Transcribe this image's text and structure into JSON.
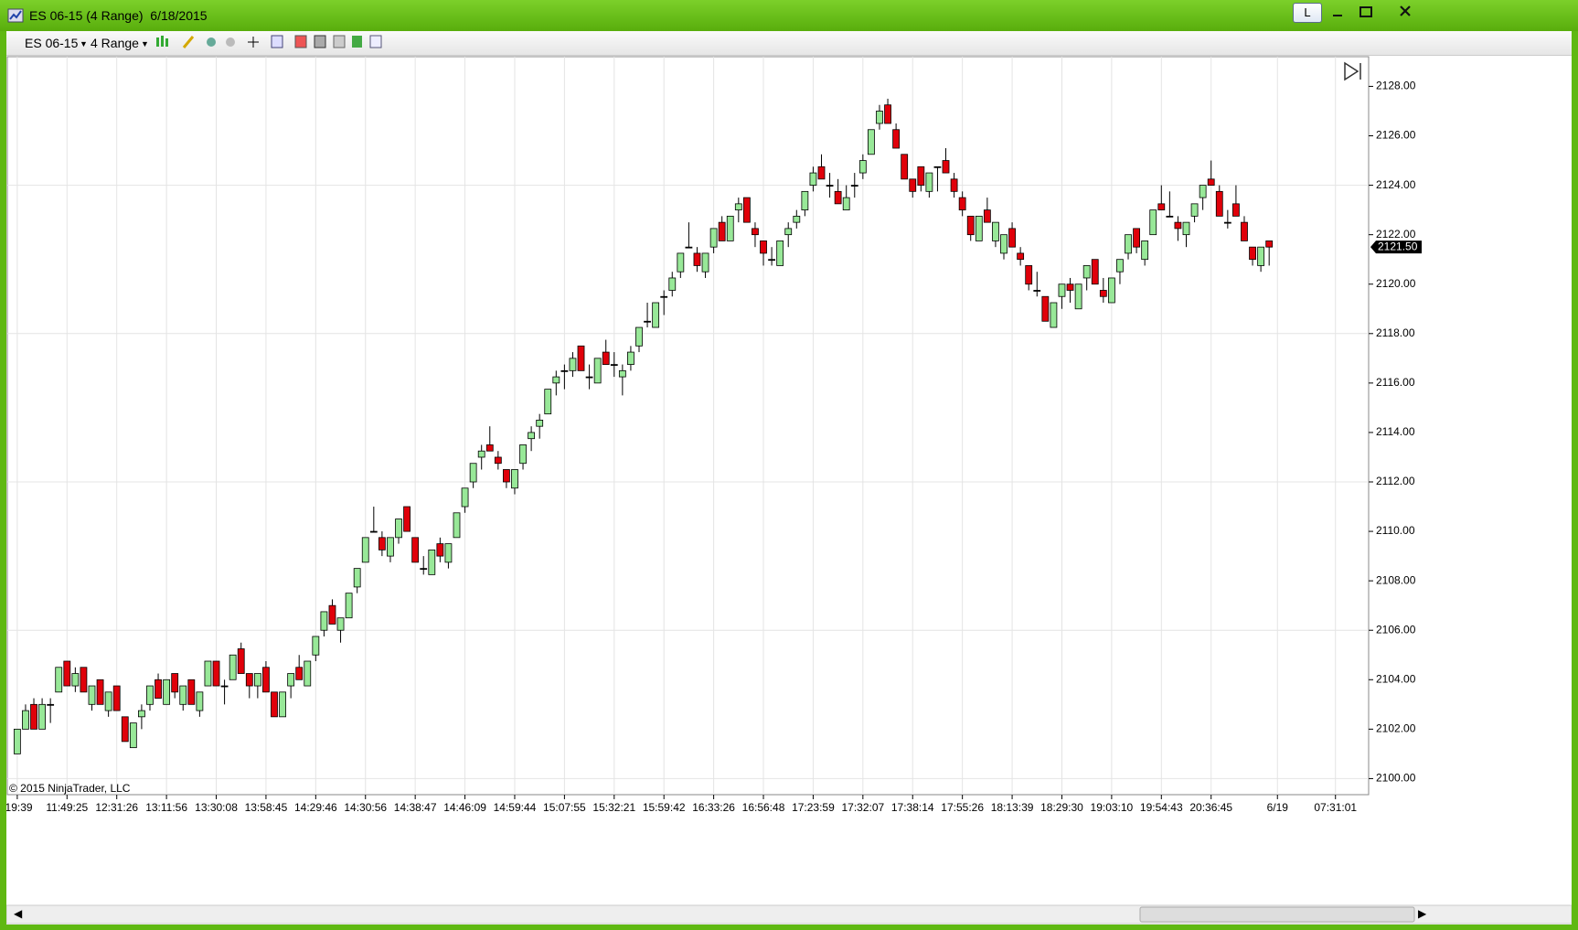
{
  "window": {
    "title": "ES 06-15 (4 Range)  6/18/2015",
    "button": "L"
  },
  "toolbar": {
    "instrument": "ES 06-15",
    "period": "4 Range"
  },
  "chart_data": {
    "type": "candlestick",
    "copyright": "© 2015 NinjaTrader, LLC",
    "up_color": "#98e898",
    "down_color": "#e0000a",
    "wick_color": "#000000",
    "ohlc": [
      [
        2101,
        2102,
        2101,
        2102
      ],
      [
        2102,
        2103,
        2102,
        2102.75
      ],
      [
        2103,
        2103.25,
        2102,
        2102
      ],
      [
        2102,
        2103.25,
        2102,
        2103
      ],
      [
        2103,
        2103.25,
        2102.25,
        2103
      ],
      [
        2103.5,
        2104.5,
        2103.5,
        2104.5
      ],
      [
        2104.75,
        2104.75,
        2103.75,
        2103.75
      ],
      [
        2103.75,
        2104.5,
        2103.5,
        2104.25
      ],
      [
        2104.5,
        2104.5,
        2103.5,
        2103.5
      ],
      [
        2103,
        2103.75,
        2102.75,
        2103.75
      ],
      [
        2104,
        2104,
        2103,
        2103
      ],
      [
        2102.75,
        2103.5,
        2102.5,
        2103.5
      ],
      [
        2103.75,
        2103.75,
        2102.75,
        2102.75
      ],
      [
        2102.5,
        2102.5,
        2101.5,
        2101.5
      ],
      [
        2101.25,
        2102.25,
        2101.25,
        2102.25
      ],
      [
        2102.5,
        2103,
        2102,
        2102.75
      ],
      [
        2103,
        2103.75,
        2102.75,
        2103.75
      ],
      [
        2104,
        2104.25,
        2103.25,
        2103.25
      ],
      [
        2103,
        2104,
        2103,
        2104
      ],
      [
        2104.25,
        2104.25,
        2103.25,
        2103.5
      ],
      [
        2103,
        2103.75,
        2102.75,
        2103.75
      ],
      [
        2104,
        2104,
        2103,
        2103
      ],
      [
        2102.75,
        2103.5,
        2102.5,
        2103.5
      ],
      [
        2103.75,
        2104.75,
        2103.75,
        2104.75
      ],
      [
        2104.75,
        2104.75,
        2103.75,
        2103.75
      ],
      [
        2103.75,
        2104,
        2103,
        2103.75
      ],
      [
        2104,
        2105,
        2104,
        2105
      ],
      [
        2105.25,
        2105.5,
        2104.25,
        2104.25
      ],
      [
        2104.25,
        2104.25,
        2103.25,
        2103.75
      ],
      [
        2103.75,
        2104.25,
        2103.25,
        2104.25
      ],
      [
        2104.5,
        2104.75,
        2103.5,
        2103.5
      ],
      [
        2103.5,
        2103.5,
        2102.5,
        2102.5
      ],
      [
        2102.5,
        2103.5,
        2102.5,
        2103.5
      ],
      [
        2103.75,
        2104.25,
        2103.25,
        2104.25
      ],
      [
        2104.5,
        2105,
        2104,
        2104
      ],
      [
        2103.75,
        2104.75,
        2103.75,
        2104.75
      ],
      [
        2105,
        2105.75,
        2104.75,
        2105.75
      ],
      [
        2106,
        2106.75,
        2105.75,
        2106.75
      ],
      [
        2107,
        2107.25,
        2106.25,
        2106.25
      ],
      [
        2106,
        2106.5,
        2105.5,
        2106.5
      ],
      [
        2106.5,
        2107.5,
        2106.5,
        2107.5
      ],
      [
        2107.75,
        2108.5,
        2107.5,
        2108.5
      ],
      [
        2108.75,
        2109.75,
        2108.75,
        2109.75
      ],
      [
        2110,
        2111,
        2110,
        2110
      ],
      [
        2109.75,
        2110,
        2109,
        2109.25
      ],
      [
        2109,
        2109.75,
        2108.75,
        2109.75
      ],
      [
        2109.75,
        2110.5,
        2109.5,
        2110.5
      ],
      [
        2111,
        2111,
        2110,
        2110
      ],
      [
        2109.75,
        2109.75,
        2108.75,
        2108.75
      ],
      [
        2108.5,
        2109,
        2108.25,
        2108.5
      ],
      [
        2108.25,
        2109.25,
        2108.25,
        2109.25
      ],
      [
        2109.5,
        2109.75,
        2108.75,
        2109
      ],
      [
        2108.75,
        2109.5,
        2108.5,
        2109.5
      ],
      [
        2109.75,
        2110.75,
        2109.75,
        2110.75
      ],
      [
        2111,
        2111.75,
        2110.75,
        2111.75
      ],
      [
        2112,
        2112.75,
        2111.75,
        2112.75
      ],
      [
        2113,
        2113.5,
        2112.5,
        2113.25
      ],
      [
        2113.5,
        2114.25,
        2113.25,
        2113.25
      ],
      [
        2113,
        2113.25,
        2112.5,
        2112.75
      ],
      [
        2112.5,
        2112.5,
        2111.75,
        2112
      ],
      [
        2111.75,
        2112.5,
        2111.5,
        2112.5
      ],
      [
        2112.75,
        2113.5,
        2112.5,
        2113.5
      ],
      [
        2113.75,
        2114.25,
        2113.25,
        2114
      ],
      [
        2114.25,
        2114.75,
        2113.75,
        2114.5
      ],
      [
        2114.75,
        2115.75,
        2114.75,
        2115.75
      ],
      [
        2116,
        2116.5,
        2115.5,
        2116.25
      ],
      [
        2116.5,
        2116.75,
        2115.75,
        2116.5
      ],
      [
        2116.5,
        2117.25,
        2116.25,
        2117
      ],
      [
        2117.5,
        2117.5,
        2116.5,
        2116.5
      ],
      [
        2116.25,
        2116.75,
        2115.75,
        2116.25
      ],
      [
        2116,
        2117,
        2116,
        2117
      ],
      [
        2117.25,
        2117.75,
        2116.75,
        2116.75
      ],
      [
        2116.75,
        2117.25,
        2116.25,
        2116.75
      ],
      [
        2116.25,
        2116.75,
        2115.5,
        2116.5
      ],
      [
        2116.75,
        2117.5,
        2116.5,
        2117.25
      ],
      [
        2117.5,
        2118.25,
        2117.25,
        2118.25
      ],
      [
        2118.5,
        2119.25,
        2118.25,
        2118.5
      ],
      [
        2118.25,
        2119.25,
        2118.25,
        2119.25
      ],
      [
        2119.5,
        2119.75,
        2118.75,
        2119.5
      ],
      [
        2119.75,
        2120.5,
        2119.5,
        2120.25
      ],
      [
        2120.5,
        2121.25,
        2120.25,
        2121.25
      ],
      [
        2121.5,
        2122.5,
        2121.5,
        2121.5
      ],
      [
        2121.25,
        2121.5,
        2120.5,
        2120.75
      ],
      [
        2120.5,
        2121.25,
        2120.25,
        2121.25
      ],
      [
        2121.5,
        2122.25,
        2121.25,
        2122.25
      ],
      [
        2122.5,
        2122.75,
        2121.75,
        2121.75
      ],
      [
        2121.75,
        2122.75,
        2121.75,
        2122.75
      ],
      [
        2123,
        2123.5,
        2122.5,
        2123.25
      ],
      [
        2123.5,
        2123.5,
        2122.5,
        2122.5
      ],
      [
        2122.25,
        2122.5,
        2121.5,
        2122
      ],
      [
        2121.75,
        2121.75,
        2120.75,
        2121.25
      ],
      [
        2121,
        2121.5,
        2120.75,
        2121
      ],
      [
        2120.75,
        2121.75,
        2120.75,
        2121.75
      ],
      [
        2122,
        2122.5,
        2121.5,
        2122.25
      ],
      [
        2122.5,
        2123,
        2122.25,
        2122.75
      ],
      [
        2123,
        2123.75,
        2122.75,
        2123.75
      ],
      [
        2124,
        2124.75,
        2123.75,
        2124.5
      ],
      [
        2124.75,
        2125.25,
        2124.25,
        2124.25
      ],
      [
        2124,
        2124.5,
        2123.5,
        2124
      ],
      [
        2123.75,
        2124.25,
        2123.25,
        2123.25
      ],
      [
        2123,
        2124,
        2123,
        2123.5
      ],
      [
        2124,
        2124.5,
        2123.5,
        2124
      ],
      [
        2124.5,
        2125.25,
        2124.25,
        2125
      ],
      [
        2125.25,
        2126.25,
        2125.25,
        2126.25
      ],
      [
        2126.5,
        2127.25,
        2126.25,
        2127
      ],
      [
        2127.25,
        2127.5,
        2126.5,
        2126.5
      ],
      [
        2126.25,
        2126.5,
        2125.5,
        2125.5
      ],
      [
        2125.25,
        2125.25,
        2124.25,
        2124.25
      ],
      [
        2124.25,
        2124.25,
        2123.5,
        2123.75
      ],
      [
        2124.75,
        2124.75,
        2123.75,
        2124
      ],
      [
        2123.75,
        2124.5,
        2123.5,
        2124.5
      ],
      [
        2124.75,
        2124.75,
        2123.75,
        2124.75
      ],
      [
        2125,
        2125.5,
        2124.5,
        2124.5
      ],
      [
        2124.25,
        2124.5,
        2123.5,
        2123.75
      ],
      [
        2123.5,
        2123.75,
        2122.75,
        2123
      ],
      [
        2122.75,
        2122.75,
        2121.75,
        2122
      ],
      [
        2121.75,
        2122.75,
        2121.75,
        2122.75
      ],
      [
        2123,
        2123.5,
        2122.5,
        2122.5
      ],
      [
        2121.75,
        2122.5,
        2121.5,
        2122.5
      ],
      [
        2121.25,
        2122,
        2121,
        2122
      ],
      [
        2122.25,
        2122.5,
        2121.5,
        2121.5
      ],
      [
        2121.25,
        2121.5,
        2120.75,
        2121
      ],
      [
        2120.75,
        2120.75,
        2119.75,
        2120
      ],
      [
        2119.75,
        2120.5,
        2119.5,
        2119.75
      ],
      [
        2119.5,
        2119.5,
        2118.5,
        2118.5
      ],
      [
        2118.25,
        2119.25,
        2118.25,
        2119.25
      ],
      [
        2119.5,
        2120,
        2119,
        2120
      ],
      [
        2120,
        2120.25,
        2119.25,
        2119.75
      ],
      [
        2119,
        2120,
        2119,
        2120
      ],
      [
        2120.25,
        2120.75,
        2119.75,
        2120.75
      ],
      [
        2121,
        2121,
        2120,
        2120
      ],
      [
        2119.75,
        2120.25,
        2119.25,
        2119.5
      ],
      [
        2119.25,
        2120.25,
        2119.25,
        2120.25
      ],
      [
        2120.5,
        2121,
        2120,
        2121
      ],
      [
        2121.25,
        2122,
        2121,
        2122
      ],
      [
        2122.25,
        2122.25,
        2121.25,
        2121.5
      ],
      [
        2121,
        2121.75,
        2120.75,
        2121.75
      ],
      [
        2122,
        2123,
        2122,
        2123
      ],
      [
        2123.25,
        2124,
        2123,
        2123
      ],
      [
        2122.75,
        2123.75,
        2122.75,
        2122.75
      ],
      [
        2122.5,
        2122.75,
        2121.75,
        2122.25
      ],
      [
        2122,
        2122.5,
        2121.5,
        2122.5
      ],
      [
        2122.75,
        2123.25,
        2122.5,
        2123.25
      ],
      [
        2123.5,
        2124,
        2123,
        2124
      ],
      [
        2124.25,
        2125,
        2124,
        2124
      ],
      [
        2123.75,
        2124,
        2122.75,
        2122.75
      ],
      [
        2122.5,
        2123,
        2122.25,
        2122.5
      ],
      [
        2123.25,
        2124,
        2122.75,
        2122.75
      ],
      [
        2122.5,
        2122.75,
        2121.75,
        2121.75
      ],
      [
        2121.5,
        2121.5,
        2120.75,
        2121
      ],
      [
        2120.75,
        2121.5,
        2120.5,
        2121.5
      ],
      [
        2121.75,
        2121.75,
        2120.75,
        2121.5
      ]
    ],
    "xlim": [
      -1.2,
      163
    ],
    "xticks": [
      {
        "value": 0,
        "label": ":19:39"
      },
      {
        "value": 6,
        "label": "11:49:25"
      },
      {
        "value": 12,
        "label": "12:31:26"
      },
      {
        "value": 18,
        "label": "13:11:56"
      },
      {
        "value": 24,
        "label": "13:30:08"
      },
      {
        "value": 30,
        "label": "13:58:45"
      },
      {
        "value": 36,
        "label": "14:29:46"
      },
      {
        "value": 42,
        "label": "14:30:56"
      },
      {
        "value": 48,
        "label": "14:38:47"
      },
      {
        "value": 54,
        "label": "14:46:09"
      },
      {
        "value": 60,
        "label": "14:59:44"
      },
      {
        "value": 66,
        "label": "15:07:55"
      },
      {
        "value": 72,
        "label": "15:32:21"
      },
      {
        "value": 78,
        "label": "15:59:42"
      },
      {
        "value": 84,
        "label": "16:33:26"
      },
      {
        "value": 90,
        "label": "16:56:48"
      },
      {
        "value": 96,
        "label": "17:23:59"
      },
      {
        "value": 102,
        "label": "17:32:07"
      },
      {
        "value": 108,
        "label": "17:38:14"
      },
      {
        "value": 114,
        "label": "17:55:26"
      },
      {
        "value": 120,
        "label": "18:13:39"
      },
      {
        "value": 126,
        "label": "18:29:30"
      },
      {
        "value": 132,
        "label": "19:03:10"
      },
      {
        "value": 138,
        "label": "19:54:43"
      },
      {
        "value": 144,
        "label": "20:36:45"
      },
      {
        "value": 152,
        "label": "6/19"
      },
      {
        "value": 159,
        "label": "07:31:01"
      }
    ],
    "ylim": [
      2099.35,
      2129.2
    ],
    "yticks": [
      {
        "value": 2100,
        "label": "2100.00"
      },
      {
        "value": 2102,
        "label": "2102.00"
      },
      {
        "value": 2104,
        "label": "2104.00"
      },
      {
        "value": 2106,
        "label": "2106.00"
      },
      {
        "value": 2108,
        "label": "2108.00"
      },
      {
        "value": 2110,
        "label": "2110.00"
      },
      {
        "value": 2112,
        "label": "2112.00"
      },
      {
        "value": 2114,
        "label": "2114.00"
      },
      {
        "value": 2116,
        "label": "2116.00"
      },
      {
        "value": 2118,
        "label": "2118.00"
      },
      {
        "value": 2120,
        "label": "2120.00"
      },
      {
        "value": 2122,
        "label": "2122.00"
      },
      {
        "value": 2124,
        "label": "2124.00"
      },
      {
        "value": 2126,
        "label": "2126.00"
      },
      {
        "value": 2128,
        "label": "2128.00"
      }
    ],
    "ygrid": [
      2100,
      2106,
      2112,
      2118,
      2124
    ],
    "grid": true,
    "last_price": {
      "value": 2121.5,
      "label": "2121.50"
    }
  }
}
